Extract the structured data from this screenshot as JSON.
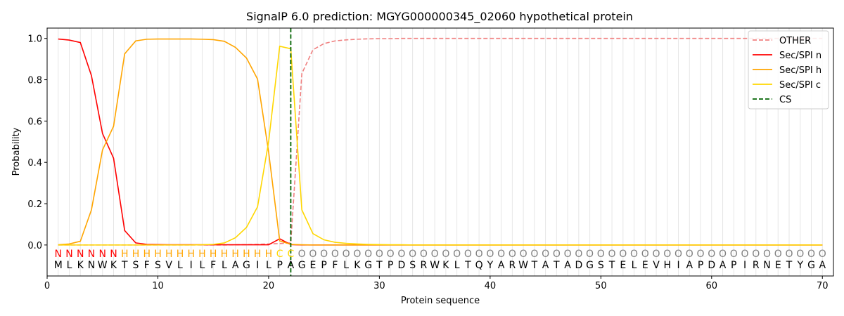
{
  "chart_data": {
    "type": "line",
    "title": "SignalP 6.0 prediction: MGYG000000345_02060 hypothetical protein",
    "xlabel": "Protein sequence",
    "ylabel": "Probability",
    "xlim": [
      0,
      71
    ],
    "ylim": [
      -0.15,
      1.05
    ],
    "x_ticks": [
      0,
      10,
      20,
      30,
      40,
      50,
      60,
      70
    ],
    "y_ticks": [
      0.0,
      0.2,
      0.4,
      0.6,
      0.8,
      1.0
    ],
    "x_tick_labels": [
      "0",
      "10",
      "20",
      "30",
      "40",
      "50",
      "60",
      "70"
    ],
    "y_tick_labels": [
      "0.0",
      "0.2",
      "0.4",
      "0.6",
      "0.8",
      "1.0"
    ],
    "grid": "vertical lines at each residue",
    "legend_position": "top-right",
    "sequence": [
      "M",
      "L",
      "K",
      "N",
      "W",
      "K",
      "T",
      "S",
      "F",
      "S",
      "V",
      "L",
      "I",
      "L",
      "F",
      "L",
      "A",
      "G",
      "I",
      "L",
      "P",
      "A",
      "G",
      "E",
      "P",
      "F",
      "L",
      "K",
      "G",
      "T",
      "P",
      "D",
      "S",
      "R",
      "W",
      "K",
      "L",
      "T",
      "Q",
      "Y",
      "A",
      "R",
      "W",
      "T",
      "A",
      "T",
      "A",
      "D",
      "G",
      "S",
      "T",
      "E",
      "L",
      "E",
      "V",
      "H",
      "I",
      "A",
      "P",
      "D",
      "A",
      "P",
      "I",
      "R",
      "N",
      "E",
      "T",
      "Y",
      "G",
      "A"
    ],
    "labels": [
      "N",
      "N",
      "N",
      "N",
      "N",
      "N",
      "H",
      "H",
      "H",
      "H",
      "H",
      "H",
      "H",
      "H",
      "H",
      "H",
      "H",
      "H",
      "H",
      "H",
      "C",
      "C",
      "O",
      "O",
      "O",
      "O",
      "O",
      "O",
      "O",
      "O",
      "O",
      "O",
      "O",
      "O",
      "O",
      "O",
      "O",
      "O",
      "O",
      "O",
      "O",
      "O",
      "O",
      "O",
      "O",
      "O",
      "O",
      "O",
      "O",
      "O",
      "O",
      "O",
      "O",
      "O",
      "O",
      "O",
      "O",
      "O",
      "O",
      "O",
      "O",
      "O",
      "O",
      "O",
      "O",
      "O",
      "O",
      "O",
      "O",
      "O"
    ],
    "label_colors": {
      "N": "#ff0000",
      "H": "#ffa500",
      "C": "#ffd700",
      "O": "#808080"
    },
    "cs_position": 22,
    "series": [
      {
        "name": "OTHER",
        "color": "#f08080",
        "dash": true,
        "values": [
          0,
          0,
          0,
          0,
          0,
          0,
          0,
          0,
          0,
          0,
          0,
          0,
          0,
          0,
          0,
          0,
          0.001,
          0.002,
          0.003,
          0.005,
          0.007,
          0.01,
          0.83,
          0.945,
          0.975,
          0.988,
          0.993,
          0.996,
          0.998,
          0.999,
          0.999,
          1,
          1,
          1,
          1,
          1,
          1,
          1,
          1,
          1,
          1,
          1,
          1,
          1,
          1,
          1,
          1,
          1,
          1,
          1,
          1,
          1,
          1,
          1,
          1,
          1,
          1,
          1,
          1,
          1,
          1,
          1,
          1,
          1,
          1,
          1,
          1,
          1,
          1,
          1
        ]
      },
      {
        "name": "Sec/SPI n",
        "color": "#ff0000",
        "dash": false,
        "values": [
          0.997,
          0.992,
          0.98,
          0.82,
          0.54,
          0.42,
          0.07,
          0.01,
          0.003,
          0.002,
          0.001,
          0.001,
          0.001,
          0.001,
          0.001,
          0.001,
          0.001,
          0.001,
          0.001,
          0.001,
          0.03,
          0.002,
          0,
          0,
          0,
          0,
          0,
          0,
          0,
          0,
          0,
          0,
          0,
          0,
          0,
          0,
          0,
          0,
          0,
          0,
          0,
          0,
          0,
          0,
          0,
          0,
          0,
          0,
          0,
          0,
          0,
          0,
          0,
          0,
          0,
          0,
          0,
          0,
          0,
          0,
          0,
          0,
          0,
          0,
          0,
          0,
          0,
          0,
          0,
          0
        ]
      },
      {
        "name": "Sec/SPI h",
        "color": "#ffa500",
        "dash": false,
        "values": [
          0.001,
          0.005,
          0.018,
          0.17,
          0.46,
          0.575,
          0.925,
          0.988,
          0.996,
          0.997,
          0.997,
          0.997,
          0.997,
          0.996,
          0.994,
          0.986,
          0.957,
          0.905,
          0.803,
          0.45,
          0.02,
          0.003,
          0.001,
          0,
          0,
          0,
          0,
          0,
          0,
          0,
          0,
          0,
          0,
          0,
          0,
          0,
          0,
          0,
          0,
          0,
          0,
          0,
          0,
          0,
          0,
          0,
          0,
          0,
          0,
          0,
          0,
          0,
          0,
          0,
          0,
          0,
          0,
          0,
          0,
          0,
          0,
          0,
          0,
          0,
          0,
          0,
          0,
          0,
          0,
          0
        ]
      },
      {
        "name": "Sec/SPI c",
        "color": "#ffd700",
        "dash": false,
        "values": [
          0,
          0,
          0,
          0,
          0,
          0,
          0,
          0,
          0,
          0,
          0,
          0,
          0,
          0.001,
          0.003,
          0.01,
          0.035,
          0.085,
          0.185,
          0.5,
          0.962,
          0.95,
          0.17,
          0.055,
          0.025,
          0.013,
          0.008,
          0.005,
          0.003,
          0.002,
          0.001,
          0.001,
          0,
          0,
          0,
          0,
          0,
          0,
          0,
          0,
          0,
          0,
          0,
          0,
          0,
          0,
          0,
          0,
          0,
          0,
          0,
          0,
          0,
          0,
          0,
          0,
          0,
          0,
          0,
          0,
          0,
          0,
          0,
          0,
          0,
          0,
          0,
          0,
          0,
          0
        ]
      }
    ],
    "legend": [
      {
        "label": "OTHER",
        "color": "#f08080",
        "dash": true
      },
      {
        "label": "Sec/SPI n",
        "color": "#ff0000",
        "dash": false
      },
      {
        "label": "Sec/SPI h",
        "color": "#ffa500",
        "dash": false
      },
      {
        "label": "Sec/SPI c",
        "color": "#ffd700",
        "dash": false
      },
      {
        "label": "CS",
        "color": "#006400",
        "dash": true
      }
    ]
  }
}
